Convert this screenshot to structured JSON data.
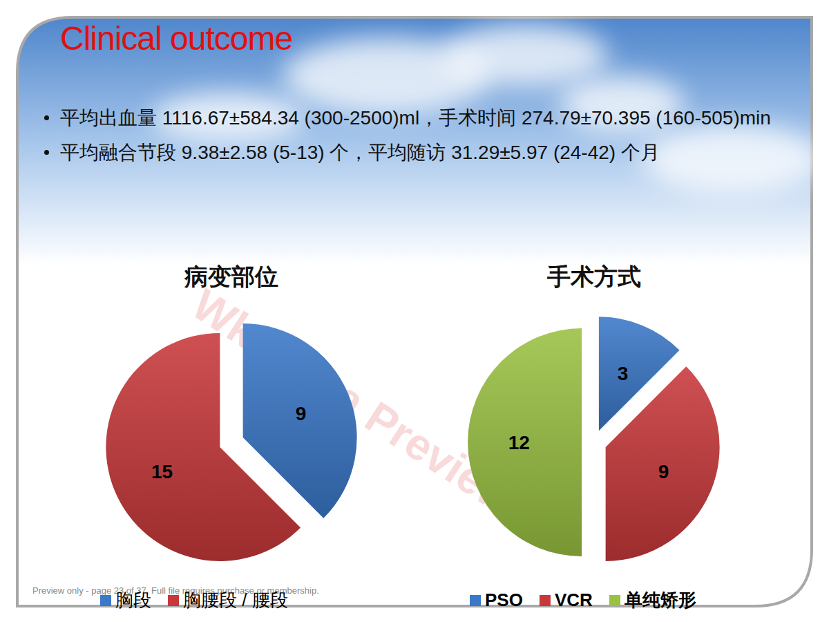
{
  "slide": {
    "title": "Clinical outcome",
    "bullets": [
      "平均出血量 1116.67±584.34 (300-2500)ml，手术时间 274.79±70.395 (160-505)min",
      "平均融合节段 9.38±2.58 (5-13) 个，平均随访 31.29±5.97 (24-42) 个月"
    ]
  },
  "watermark": "Wksucha Preview",
  "footer": "Preview only - page 23 of 37. Full file requires purchase or membership.",
  "chart_data": [
    {
      "type": "pie",
      "title": "病变部位",
      "categories": [
        "胸段",
        "胸腰段 / 腰段"
      ],
      "values": [
        9,
        15
      ],
      "colors": [
        "#3a78c9",
        "#c8383a"
      ],
      "data_labels": true,
      "legend": "bottom"
    },
    {
      "type": "pie",
      "title": "手术方式",
      "categories": [
        "PSO",
        "VCR",
        "单纯矫形"
      ],
      "values": [
        3,
        9,
        12
      ],
      "colors": [
        "#3a78c9",
        "#c8383a",
        "#9ac142"
      ],
      "data_labels": true,
      "legend": "bottom"
    }
  ]
}
